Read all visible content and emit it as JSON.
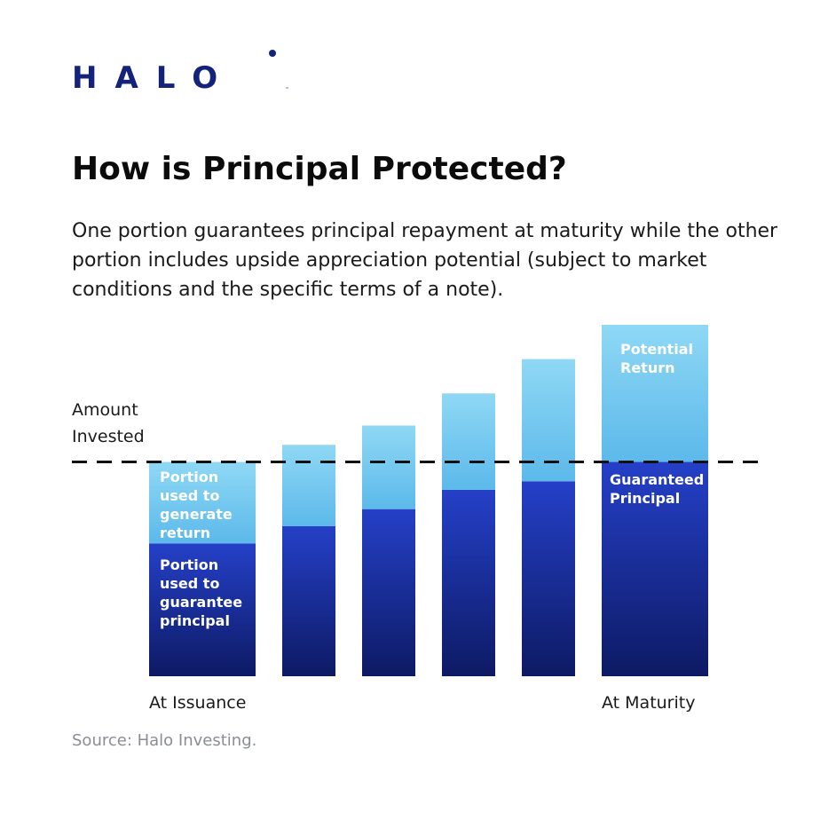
{
  "brand": {
    "logo_text": "HALO",
    "trademark": "™"
  },
  "heading": "How is Principal Protected?",
  "description": "One portion guarantees principal repayment at maturity while the other portion includes upside appreciation potential (subject to market conditions and the specific terms of a note).",
  "source": "Source: Halo Investing.",
  "colors": {
    "brand": "#14237a",
    "return_top": "#8fd8f5",
    "return_bottom": "#5cb9ea",
    "principal_top": "#2540c8",
    "principal_bottom": "#0d1a64"
  },
  "chart_data": {
    "type": "bar",
    "stacked": true,
    "categories": [
      "At Issuance",
      "",
      "",
      "",
      "",
      "At Maturity"
    ],
    "reference_value": 100,
    "reference_label": [
      "Amount",
      "Invested"
    ],
    "series": [
      {
        "key": "principal",
        "values": [
          62,
          70,
          78,
          87,
          91,
          100
        ]
      },
      {
        "key": "return",
        "values": [
          38,
          38,
          39,
          45,
          57,
          64
        ]
      }
    ],
    "annotations": {
      "issuance_return": [
        "Portion",
        "used to",
        "generate",
        "return"
      ],
      "issuance_principal": [
        "Portion",
        "used to",
        "guarantee",
        "principal"
      ],
      "maturity_return": [
        "Potential",
        "Return"
      ],
      "maturity_principal": [
        "Guaranteed",
        "Principal"
      ]
    },
    "ylim": [
      0,
      164
    ],
    "axes_visible": false,
    "grid": false,
    "legend": "none"
  }
}
